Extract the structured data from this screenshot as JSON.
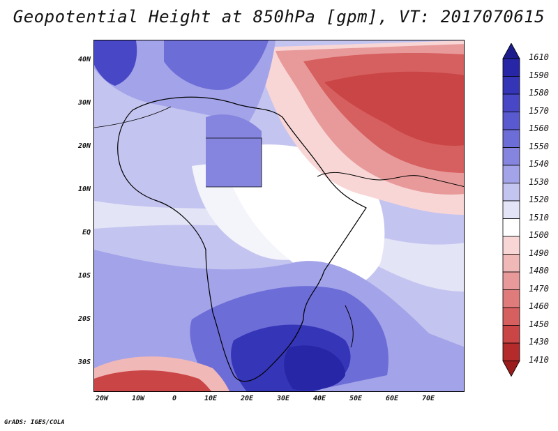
{
  "title": "Geopotential Height at 850hPa [gpm], VT: 2017070615",
  "footer": "GrADS: IGES/COLA",
  "map": {
    "variable": "Geopotential Height",
    "level": "850hPa",
    "units": "gpm",
    "valid_time": "2017070615",
    "lon_labels": [
      "20W",
      "10W",
      "0",
      "10E",
      "20E",
      "30E",
      "40E",
      "50E",
      "60E",
      "70E"
    ],
    "lat_labels": [
      "40N",
      "30N",
      "20N",
      "10N",
      "EQ",
      "10S",
      "20S",
      "30S"
    ]
  },
  "colorbar": {
    "levels": [
      "1610",
      "1590",
      "1580",
      "1570",
      "1560",
      "1550",
      "1540",
      "1530",
      "1520",
      "1510",
      "1500",
      "1490",
      "1480",
      "1470",
      "1460",
      "1450",
      "1430",
      "1410"
    ],
    "colors": [
      "#1c1c8c",
      "#2626a6",
      "#3535b8",
      "#4848c6",
      "#5a5ad0",
      "#6d6dd8",
      "#8585e0",
      "#a3a3e9",
      "#c4c4f0",
      "#e4e4f7",
      "#ffffff",
      "#f8d6d6",
      "#f1b8b8",
      "#e89a9a",
      "#df7b7b",
      "#d65f5f",
      "#ca4545",
      "#b52a2a",
      "#9a1c1c"
    ]
  }
}
